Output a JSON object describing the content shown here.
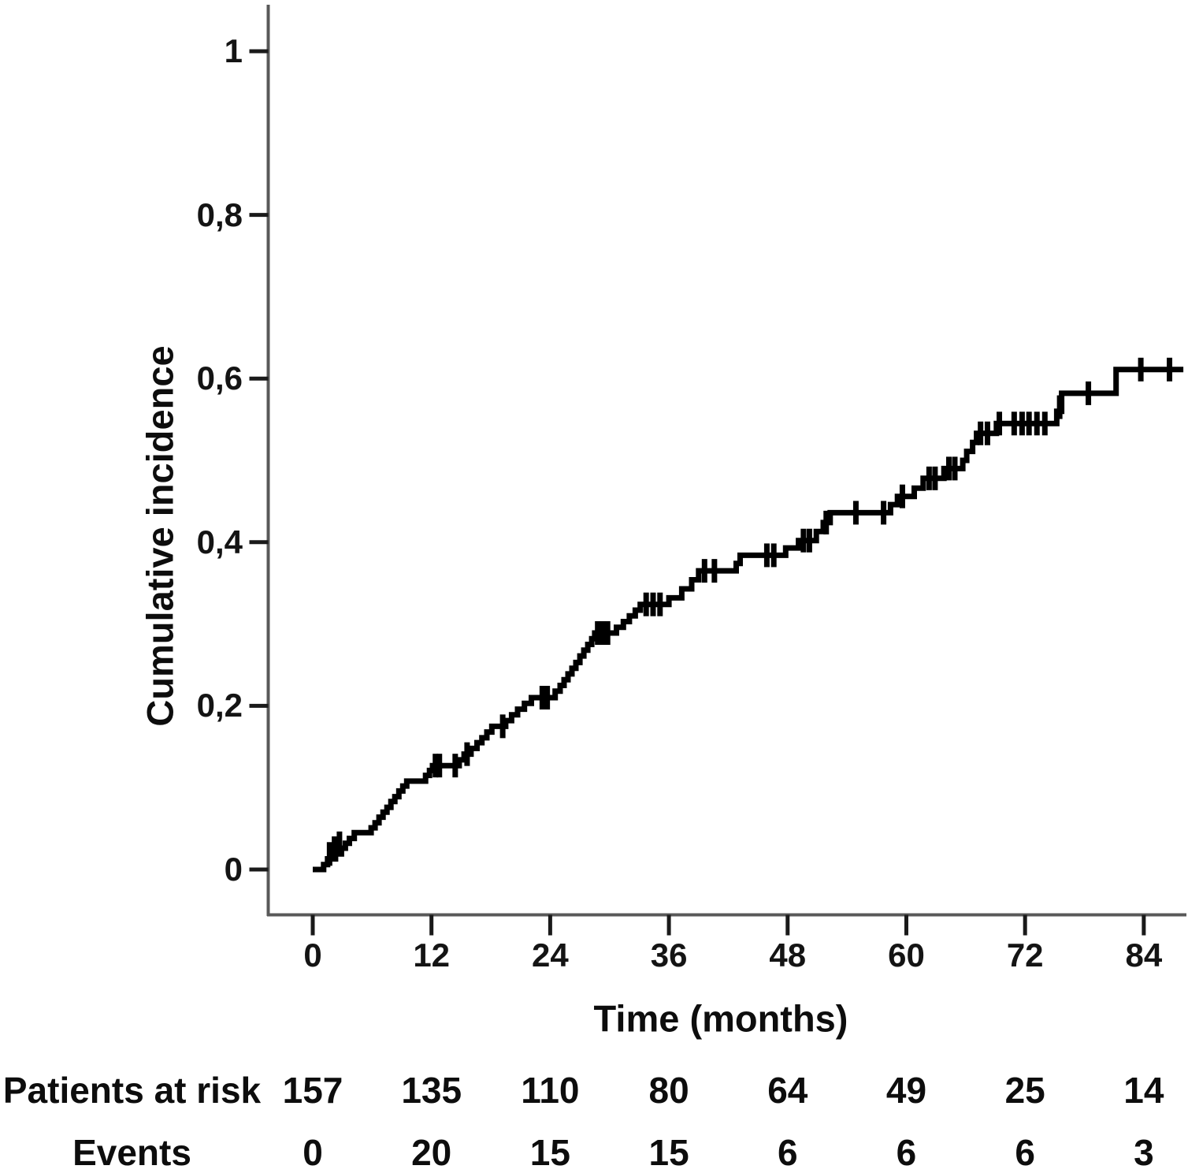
{
  "chart_data": {
    "type": "line",
    "subtype": "kaplan-meier-step",
    "title": "",
    "xlabel": "Time (months)",
    "ylabel": "Cumulative incidence",
    "xlim": [
      0,
      88.5
    ],
    "ylim": [
      0,
      1
    ],
    "grid": false,
    "legend": "none",
    "x_ticks": [
      0,
      12,
      24,
      36,
      48,
      60,
      72,
      84
    ],
    "x_tick_labels": [
      "0",
      "12",
      "24",
      "36",
      "48",
      "60",
      "72",
      "84"
    ],
    "y_ticks": [
      0,
      0.2,
      0.4,
      0.6,
      0.8,
      1
    ],
    "y_tick_labels": [
      "0",
      "0,2",
      "0,4",
      "0,6",
      "0,8",
      "1"
    ],
    "colors": {
      "curve": "#000000",
      "axis": "#595959",
      "tick": "#1a1a1a",
      "text": "#0d0d0d"
    },
    "series": [
      {
        "name": "Cumulative incidence",
        "style": "step-post",
        "color": "#000000",
        "points": [
          [
            0,
            0
          ],
          [
            1.1,
            0.006
          ],
          [
            1.5,
            0.013
          ],
          [
            2.3,
            0.019
          ],
          [
            2.9,
            0.026
          ],
          [
            3.3,
            0.032
          ],
          [
            3.7,
            0.038
          ],
          [
            4.2,
            0.045
          ],
          [
            5.9,
            0.051
          ],
          [
            6.3,
            0.057
          ],
          [
            6.7,
            0.064
          ],
          [
            7.1,
            0.07
          ],
          [
            7.5,
            0.076
          ],
          [
            7.9,
            0.083
          ],
          [
            8.3,
            0.089
          ],
          [
            8.7,
            0.096
          ],
          [
            9.1,
            0.102
          ],
          [
            9.5,
            0.108
          ],
          [
            11.4,
            0.115
          ],
          [
            11.8,
            0.121
          ],
          [
            12.1,
            0.127
          ],
          [
            14.8,
            0.134
          ],
          [
            15.3,
            0.141
          ],
          [
            16.0,
            0.148
          ],
          [
            16.6,
            0.155
          ],
          [
            17.1,
            0.161
          ],
          [
            17.6,
            0.168
          ],
          [
            18.1,
            0.175
          ],
          [
            19.5,
            0.182
          ],
          [
            20.1,
            0.189
          ],
          [
            20.7,
            0.196
          ],
          [
            21.4,
            0.203
          ],
          [
            22.1,
            0.21
          ],
          [
            24.5,
            0.218
          ],
          [
            25.0,
            0.225
          ],
          [
            25.4,
            0.232
          ],
          [
            25.8,
            0.239
          ],
          [
            26.2,
            0.246
          ],
          [
            26.6,
            0.253
          ],
          [
            27.0,
            0.261
          ],
          [
            27.4,
            0.268
          ],
          [
            27.8,
            0.275
          ],
          [
            28.2,
            0.282
          ],
          [
            28.5,
            0.289
          ],
          [
            30.7,
            0.296
          ],
          [
            31.4,
            0.303
          ],
          [
            32.0,
            0.31
          ],
          [
            32.6,
            0.317
          ],
          [
            33.1,
            0.324
          ],
          [
            36.0,
            0.332
          ],
          [
            37.3,
            0.343
          ],
          [
            38.3,
            0.354
          ],
          [
            39.0,
            0.365
          ],
          [
            42.8,
            0.374
          ],
          [
            43.2,
            0.384
          ],
          [
            47.8,
            0.393
          ],
          [
            49.1,
            0.402
          ],
          [
            50.9,
            0.413
          ],
          [
            51.6,
            0.424
          ],
          [
            52.3,
            0.436
          ],
          [
            58.4,
            0.446
          ],
          [
            59.1,
            0.456
          ],
          [
            60.8,
            0.466
          ],
          [
            61.7,
            0.478
          ],
          [
            63.8,
            0.49
          ],
          [
            65.7,
            0.5
          ],
          [
            66.1,
            0.511
          ],
          [
            66.7,
            0.522
          ],
          [
            67.1,
            0.533
          ],
          [
            69.1,
            0.545
          ],
          [
            75.2,
            0.56
          ],
          [
            75.7,
            0.582
          ],
          [
            81.2,
            0.611
          ],
          [
            88.0,
            0.611
          ]
        ],
        "censor_marks": [
          [
            1.7,
            0.019
          ],
          [
            2.2,
            0.026
          ],
          [
            2.7,
            0.032
          ],
          [
            12.4,
            0.127
          ],
          [
            12.8,
            0.127
          ],
          [
            14.4,
            0.127
          ],
          [
            15.6,
            0.141
          ],
          [
            19.2,
            0.175
          ],
          [
            23.2,
            0.21
          ],
          [
            23.7,
            0.21
          ],
          [
            28.8,
            0.289
          ],
          [
            29.3,
            0.289
          ],
          [
            29.8,
            0.289
          ],
          [
            33.7,
            0.324
          ],
          [
            34.4,
            0.324
          ],
          [
            35.1,
            0.324
          ],
          [
            39.6,
            0.365
          ],
          [
            40.6,
            0.365
          ],
          [
            45.9,
            0.384
          ],
          [
            46.6,
            0.384
          ],
          [
            49.6,
            0.402
          ],
          [
            50.2,
            0.402
          ],
          [
            51.9,
            0.424
          ],
          [
            54.9,
            0.436
          ],
          [
            57.7,
            0.436
          ],
          [
            59.6,
            0.456
          ],
          [
            62.3,
            0.478
          ],
          [
            62.9,
            0.478
          ],
          [
            64.3,
            0.49
          ],
          [
            64.9,
            0.49
          ],
          [
            67.5,
            0.533
          ],
          [
            68.2,
            0.533
          ],
          [
            69.4,
            0.545
          ],
          [
            70.9,
            0.545
          ],
          [
            71.7,
            0.545
          ],
          [
            72.4,
            0.545
          ],
          [
            73.2,
            0.545
          ],
          [
            74.0,
            0.545
          ],
          [
            75.5,
            0.565
          ],
          [
            78.4,
            0.582
          ],
          [
            83.7,
            0.611
          ],
          [
            86.6,
            0.611
          ]
        ]
      }
    ],
    "at_risk_table": {
      "rows": [
        {
          "label": "Patients at risk",
          "values": [
            "157",
            "135",
            "110",
            "80",
            "64",
            "49",
            "25",
            "14"
          ]
        },
        {
          "label": "Events",
          "values": [
            "0",
            "20",
            "15",
            "15",
            "6",
            "6",
            "6",
            "3"
          ]
        }
      ]
    }
  }
}
